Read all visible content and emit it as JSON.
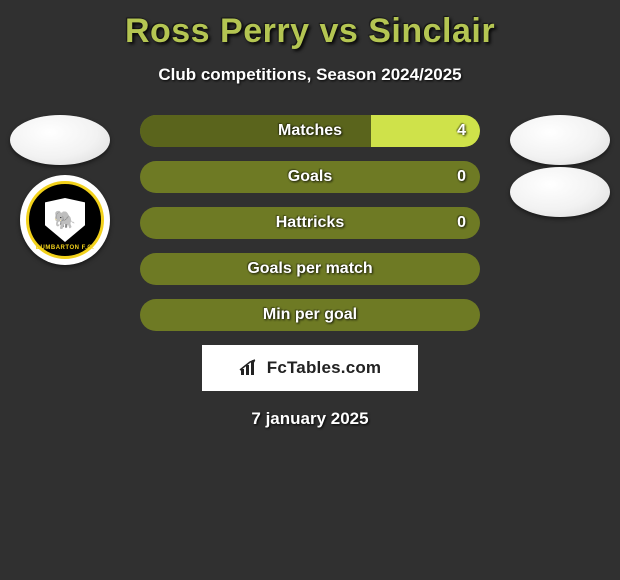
{
  "title_color": "#b4c552",
  "title": "Ross Perry vs Sinclair",
  "subtitle": "Club competitions, Season 2024/2025",
  "date": "7 january 2025",
  "logo_text": "FcTables.com",
  "bar_bg": "#6e7a24",
  "highlight_color": "#cfe24a",
  "dim_color": "#5a641c",
  "rows": [
    {
      "label": "Matches",
      "left": "",
      "right": "4",
      "left_pct": 68,
      "right_pct": 32
    },
    {
      "label": "Goals",
      "left": "",
      "right": "0",
      "left_pct": 50,
      "right_pct": 50
    },
    {
      "label": "Hattricks",
      "left": "",
      "right": "0",
      "left_pct": 50,
      "right_pct": 50
    },
    {
      "label": "Goals per match",
      "left": "",
      "right": "",
      "left_pct": 50,
      "right_pct": 50
    },
    {
      "label": "Min per goal",
      "left": "",
      "right": "",
      "left_pct": 50,
      "right_pct": 50
    }
  ],
  "club_badge": {
    "text": "DUMBARTON F.C.",
    "emoji": "🐘"
  }
}
